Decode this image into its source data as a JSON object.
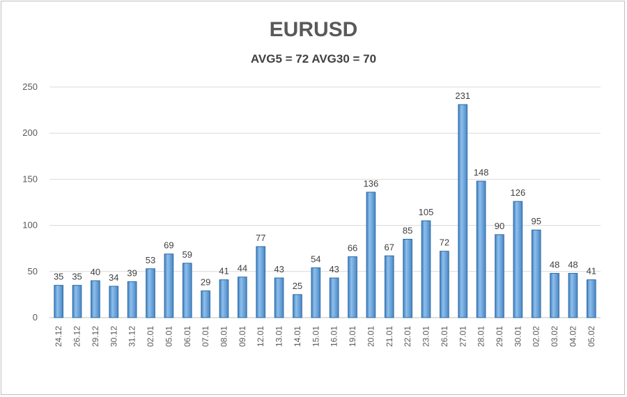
{
  "chart_data": {
    "type": "bar",
    "title": "EURUSD",
    "subtitle": "AVG5 = 72 AVG30 = 70",
    "xlabel": "",
    "ylabel": "",
    "ylim": [
      0,
      250
    ],
    "yticks": [
      0,
      50,
      100,
      150,
      200,
      250
    ],
    "grid": true,
    "legend": "none",
    "bar_color": "#5b9bd5",
    "bar_edge_color": "#2e6aa3",
    "categories": [
      "24.12",
      "26.12",
      "29.12",
      "30.12",
      "31.12",
      "02.01",
      "05.01",
      "06.01",
      "07.01",
      "08.01",
      "09.01",
      "12.01",
      "13.01",
      "14.01",
      "15.01",
      "16.01",
      "19.01",
      "20.01",
      "21.01",
      "22.01",
      "23.01",
      "26.01",
      "27.01",
      "28.01",
      "29.01",
      "30.01",
      "02.02",
      "03.02",
      "04.02",
      "05.02"
    ],
    "values": [
      35,
      35,
      40,
      34,
      39,
      53,
      69,
      59,
      29,
      41,
      44,
      77,
      43,
      25,
      54,
      43,
      66,
      136,
      67,
      85,
      105,
      72,
      231,
      148,
      90,
      126,
      95,
      48,
      48,
      41
    ]
  }
}
